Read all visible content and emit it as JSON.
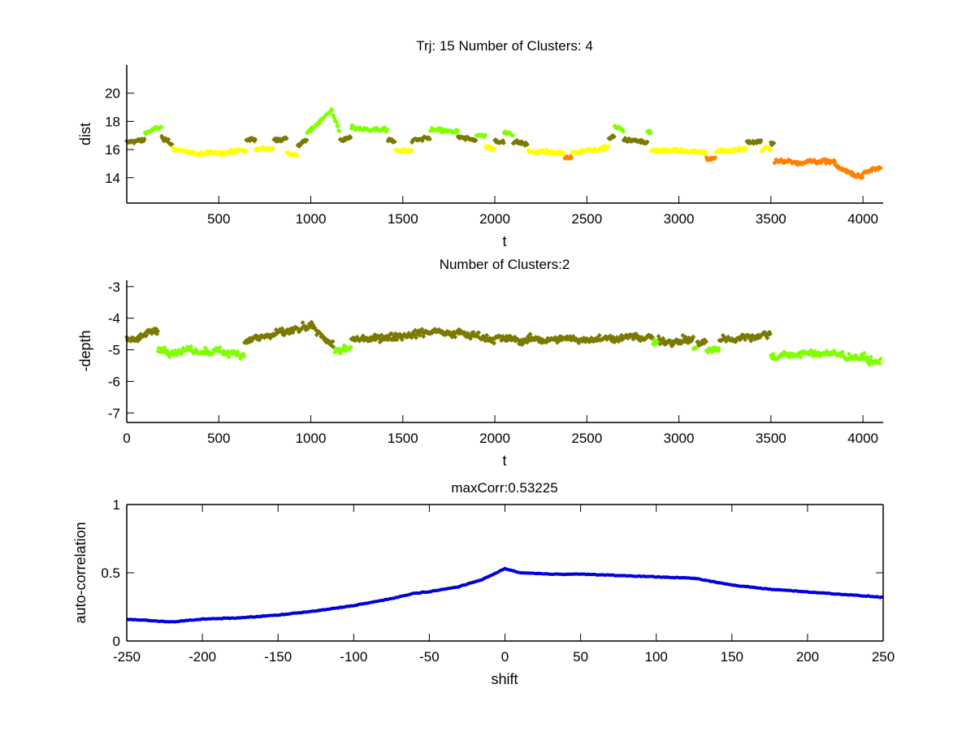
{
  "chart_data": [
    {
      "type": "scatter",
      "title": "Trj: 15 Number of Clusters: 4",
      "xlabel": "t",
      "ylabel": "dist",
      "xlim": [
        0,
        4110
      ],
      "ylim": [
        12.2,
        22
      ],
      "xticks": [
        "500",
        "1000",
        "1500",
        "2000",
        "2500",
        "3000",
        "3500",
        "4000"
      ],
      "xtick_values": [
        500,
        1000,
        1500,
        2000,
        2500,
        3000,
        3500,
        4000
      ],
      "yticks": [
        "14",
        "16",
        "18",
        "20"
      ],
      "ytick_values": [
        14,
        16,
        18,
        20
      ],
      "cluster_colors": [
        "#7a7a00",
        "#80ff00",
        "#ffff00",
        "#ff8000"
      ],
      "noise": 0.35,
      "segments_note_fields": [
        "t_start",
        "t_end",
        "cluster",
        "value_start",
        "value_end"
      ],
      "segments": [
        [
          0,
          100,
          0,
          16.5,
          16.7
        ],
        [
          100,
          190,
          1,
          17.2,
          17.6
        ],
        [
          190,
          250,
          0,
          16.8,
          16.3
        ],
        [
          250,
          400,
          2,
          16.1,
          15.6
        ],
        [
          400,
          650,
          2,
          15.7,
          15.9
        ],
        [
          650,
          700,
          0,
          16.6,
          16.8
        ],
        [
          700,
          800,
          2,
          16.0,
          16.1
        ],
        [
          800,
          870,
          0,
          16.7,
          16.8
        ],
        [
          870,
          930,
          2,
          15.8,
          15.5
        ],
        [
          930,
          980,
          0,
          16.2,
          16.7
        ],
        [
          980,
          1120,
          1,
          17.2,
          18.9
        ],
        [
          1120,
          1160,
          1,
          18.5,
          17.2
        ],
        [
          1160,
          1220,
          0,
          16.7,
          16.8
        ],
        [
          1220,
          1420,
          1,
          17.5,
          17.4
        ],
        [
          1420,
          1460,
          0,
          16.7,
          16.5
        ],
        [
          1460,
          1550,
          2,
          15.9,
          15.9
        ],
        [
          1550,
          1650,
          0,
          16.6,
          16.8
        ],
        [
          1650,
          1800,
          1,
          17.4,
          17.2
        ],
        [
          1800,
          1900,
          0,
          16.8,
          16.7
        ],
        [
          1900,
          1950,
          1,
          17.0,
          17.0
        ],
        [
          1950,
          2000,
          2,
          16.2,
          16.0
        ],
        [
          2000,
          2050,
          0,
          16.6,
          16.6
        ],
        [
          2050,
          2100,
          1,
          17.2,
          17.1
        ],
        [
          2100,
          2180,
          0,
          16.6,
          16.4
        ],
        [
          2180,
          2380,
          2,
          15.9,
          15.7
        ],
        [
          2380,
          2420,
          3,
          15.4,
          15.4
        ],
        [
          2420,
          2620,
          2,
          15.8,
          16.2
        ],
        [
          2620,
          2650,
          0,
          16.7,
          16.9
        ],
        [
          2650,
          2700,
          1,
          17.7,
          17.3
        ],
        [
          2700,
          2830,
          0,
          16.7,
          16.5
        ],
        [
          2830,
          2850,
          1,
          17.3,
          17.3
        ],
        [
          2850,
          3150,
          2,
          16.0,
          15.8
        ],
        [
          3150,
          3200,
          3,
          15.3,
          15.4
        ],
        [
          3200,
          3370,
          2,
          15.8,
          16.1
        ],
        [
          3370,
          3450,
          0,
          16.5,
          16.6
        ],
        [
          3450,
          3500,
          2,
          16.0,
          16.1
        ],
        [
          3500,
          3520,
          0,
          16.5,
          16.4
        ],
        [
          3520,
          3700,
          3,
          15.2,
          15.1
        ],
        [
          3700,
          3850,
          3,
          15.2,
          15.1
        ],
        [
          3850,
          4000,
          3,
          14.8,
          14.0
        ],
        [
          4000,
          4100,
          3,
          14.4,
          14.7
        ]
      ]
    },
    {
      "type": "scatter",
      "title": "Number of Clusters:2",
      "xlabel": "t",
      "ylabel": "-depth",
      "xlim": [
        0,
        4110
      ],
      "ylim": [
        -7.3,
        -2.8
      ],
      "xticks": [
        "0",
        "500",
        "1000",
        "1500",
        "2000",
        "2500",
        "3000",
        "3500",
        "4000"
      ],
      "xtick_values": [
        0,
        500,
        1000,
        1500,
        2000,
        2500,
        3000,
        3500,
        4000
      ],
      "yticks": [
        "-7",
        "-6",
        "-5",
        "-4",
        "-3"
      ],
      "ytick_values": [
        -7,
        -6,
        -5,
        -4,
        -3
      ],
      "cluster_colors": [
        "#7a7a00",
        "#80ff00"
      ],
      "noise": 0.3,
      "segments": [
        [
          0,
          170,
          0,
          -4.7,
          -4.4
        ],
        [
          170,
          640,
          1,
          -5.0,
          -5.1
        ],
        [
          640,
          1000,
          0,
          -4.7,
          -4.3
        ],
        [
          1000,
          1130,
          0,
          -4.3,
          -4.9
        ],
        [
          1130,
          1220,
          1,
          -5.0,
          -5.0
        ],
        [
          1220,
          1700,
          0,
          -4.7,
          -4.4
        ],
        [
          1700,
          2100,
          0,
          -4.4,
          -4.7
        ],
        [
          2100,
          2860,
          0,
          -4.7,
          -4.6
        ],
        [
          2860,
          2890,
          1,
          -4.8,
          -4.8
        ],
        [
          2890,
          3080,
          0,
          -4.7,
          -4.7
        ],
        [
          3080,
          3100,
          1,
          -4.9,
          -4.9
        ],
        [
          3100,
          3150,
          0,
          -4.8,
          -4.8
        ],
        [
          3150,
          3220,
          1,
          -5.0,
          -5.0
        ],
        [
          3220,
          3500,
          0,
          -4.7,
          -4.5
        ],
        [
          3500,
          3800,
          1,
          -5.2,
          -5.1
        ],
        [
          3800,
          4100,
          1,
          -5.1,
          -5.4
        ]
      ]
    },
    {
      "type": "line",
      "title": "maxCorr:0.53225",
      "xlabel": "shift",
      "ylabel": "auto-correlation",
      "xlim": [
        -250,
        250
      ],
      "ylim": [
        0,
        1
      ],
      "xticks": [
        "-250",
        "-200",
        "-150",
        "-100",
        "-50",
        "0",
        "50",
        "100",
        "150",
        "200",
        "250"
      ],
      "xtick_values": [
        -250,
        -200,
        -150,
        -100,
        -50,
        0,
        50,
        100,
        150,
        200,
        250
      ],
      "yticks": [
        "0",
        "0.5",
        "1"
      ],
      "ytick_values": [
        0,
        0.5,
        1
      ],
      "color": "#0000dd",
      "x": [
        -250,
        -220,
        -200,
        -175,
        -150,
        -125,
        -100,
        -75,
        -60,
        -50,
        -30,
        -15,
        0,
        10,
        30,
        50,
        75,
        100,
        125,
        150,
        175,
        200,
        225,
        250
      ],
      "y": [
        0.16,
        0.14,
        0.16,
        0.17,
        0.19,
        0.22,
        0.26,
        0.31,
        0.35,
        0.36,
        0.4,
        0.45,
        0.53,
        0.5,
        0.49,
        0.49,
        0.48,
        0.47,
        0.46,
        0.41,
        0.38,
        0.36,
        0.34,
        0.32
      ]
    }
  ]
}
